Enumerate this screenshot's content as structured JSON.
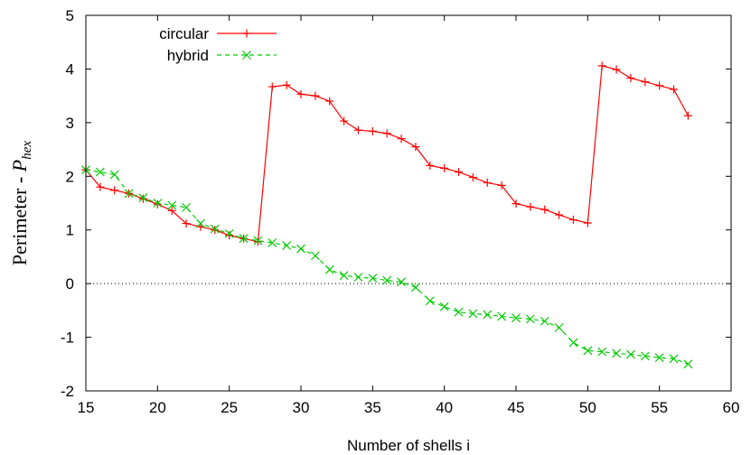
{
  "chart_data": {
    "type": "line",
    "title": "",
    "xlabel": "Number of shells i",
    "ylabel_main": "Perimeter - ",
    "ylabel_sym": "P",
    "ylabel_sub": "hex",
    "xlim": [
      15,
      60
    ],
    "ylim": [
      -2,
      5
    ],
    "xticks": [
      15,
      20,
      25,
      30,
      35,
      40,
      45,
      50,
      55,
      60
    ],
    "yticks": [
      -2,
      -1,
      0,
      1,
      2,
      3,
      4,
      5
    ],
    "grid": false,
    "reference_line": {
      "y": 0,
      "style": "dotted"
    },
    "legend_position": "top-left",
    "x": [
      15,
      16,
      17,
      18,
      19,
      20,
      21,
      22,
      23,
      24,
      25,
      26,
      27,
      28,
      29,
      30,
      31,
      32,
      33,
      34,
      35,
      36,
      37,
      38,
      39,
      40,
      41,
      42,
      43,
      44,
      45,
      46,
      47,
      48,
      49,
      50,
      51,
      52,
      53,
      54,
      55,
      56,
      57
    ],
    "series": [
      {
        "name": "circular",
        "color": "#ff0000",
        "marker": "plus",
        "dash": "solid",
        "values": [
          2.12,
          1.8,
          1.74,
          1.68,
          1.58,
          1.48,
          1.36,
          1.12,
          1.06,
          1.0,
          0.9,
          0.84,
          0.78,
          3.67,
          3.7,
          3.53,
          3.5,
          3.4,
          3.03,
          2.86,
          2.84,
          2.8,
          2.7,
          2.55,
          2.2,
          2.15,
          2.08,
          1.98,
          1.88,
          1.83,
          1.49,
          1.43,
          1.38,
          1.28,
          1.19,
          1.13,
          4.06,
          3.99,
          3.83,
          3.76,
          3.69,
          3.62,
          3.13
        ]
      },
      {
        "name": "hybrid",
        "color": "#00cc00",
        "marker": "cross",
        "dash": "dashed",
        "values": [
          2.12,
          2.08,
          2.03,
          1.68,
          1.6,
          1.5,
          1.46,
          1.42,
          1.12,
          1.02,
          0.93,
          0.84,
          0.8,
          0.76,
          0.71,
          0.65,
          0.52,
          0.26,
          0.15,
          0.12,
          0.1,
          0.06,
          0.03,
          -0.07,
          -0.32,
          -0.43,
          -0.53,
          -0.56,
          -0.58,
          -0.61,
          -0.64,
          -0.66,
          -0.7,
          -0.82,
          -1.1,
          -1.25,
          -1.27,
          -1.3,
          -1.32,
          -1.35,
          -1.38,
          -1.4,
          -1.5
        ]
      }
    ]
  }
}
